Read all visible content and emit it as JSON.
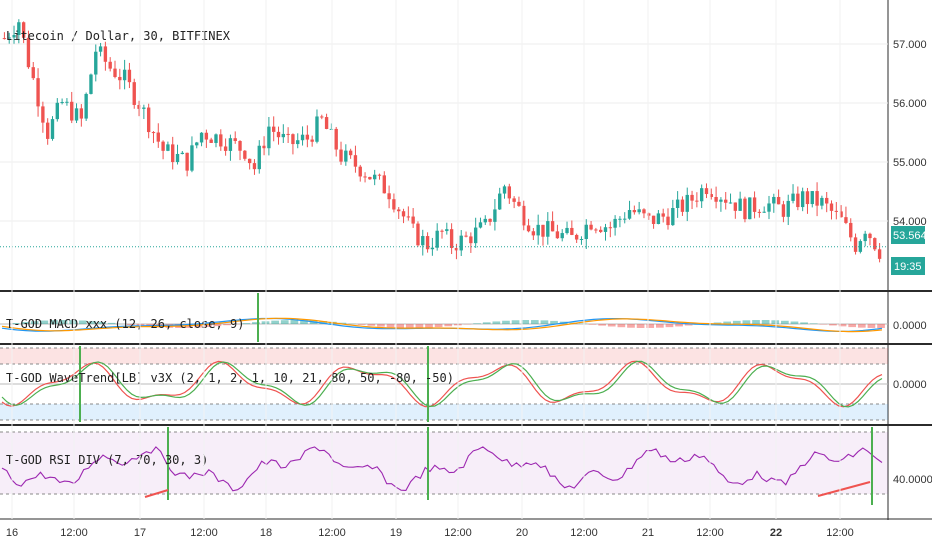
{
  "symbol_title": "Litecoin / Dollar, 30, BITFINEX",
  "colors": {
    "up": "#26a69a",
    "down": "#ef5350",
    "price_line": "#26a69a",
    "macd": "#2196f3",
    "signal": "#ff9800",
    "wt1": "#ef5350",
    "wt2": "#4caf50",
    "rsi": "#9c27b0",
    "marker": "#4caf50",
    "div": "#ef5350"
  },
  "price_panel": {
    "ticks": [
      "57.000",
      "56.000",
      "55.000",
      "54.000"
    ],
    "tick_values": [
      57,
      56,
      55,
      54
    ],
    "last_price": "53.564",
    "last_price_value": 53.564,
    "countdown": "19:35"
  },
  "panes": {
    "macd": {
      "title": "T-GOD MACD xxx (12, 26, close, 9)",
      "tick": "0.0000"
    },
    "wavetrend": {
      "title": "T-GOD WaveTrend[LB] v3X (2, 1, 2, 1, 10, 21, 80, 50, -80, -50)",
      "tick": "0.0000"
    },
    "rsi": {
      "title": "T-GOD RSI DIV (7, 70, 30, 3)",
      "tick": "40.0000"
    }
  },
  "time_axis": [
    "16",
    "12:00",
    "17",
    "12:00",
    "18",
    "12:00",
    "19",
    "12:00",
    "20",
    "12:00",
    "21",
    "12:00",
    "22",
    "12:00"
  ],
  "chart_data": {
    "type": "candlestick",
    "title": "Litecoin / Dollar, 30, BITFINEX",
    "price_keypoints": [
      [
        0,
        57.1
      ],
      [
        3,
        57.4
      ],
      [
        5,
        56.7
      ],
      [
        9,
        55.5
      ],
      [
        12,
        56.0
      ],
      [
        16,
        55.7
      ],
      [
        19,
        56.9
      ],
      [
        22,
        56.6
      ],
      [
        25,
        56.4
      ],
      [
        28,
        56.0
      ],
      [
        33,
        55.2
      ],
      [
        38,
        55.0
      ],
      [
        41,
        55.5
      ],
      [
        45,
        55.4
      ],
      [
        50,
        55.2
      ],
      [
        52,
        54.9
      ],
      [
        55,
        55.6
      ],
      [
        59,
        55.3
      ],
      [
        63,
        55.4
      ],
      [
        66,
        55.7
      ],
      [
        70,
        55.1
      ],
      [
        74,
        54.9
      ],
      [
        80,
        54.5
      ],
      [
        85,
        53.8
      ],
      [
        88,
        53.6
      ],
      [
        91,
        53.8
      ],
      [
        93,
        53.6
      ],
      [
        96,
        53.7
      ],
      [
        100,
        53.9
      ],
      [
        104,
        54.6
      ],
      [
        106,
        54.3
      ],
      [
        110,
        53.9
      ],
      [
        114,
        53.8
      ],
      [
        118,
        53.7
      ],
      [
        122,
        54.0
      ],
      [
        126,
        53.9
      ],
      [
        130,
        54.2
      ],
      [
        134,
        54.0
      ],
      [
        138,
        54.1
      ],
      [
        142,
        54.3
      ],
      [
        146,
        54.6
      ],
      [
        150,
        54.4
      ],
      [
        154,
        54.2
      ],
      [
        158,
        54.3
      ],
      [
        162,
        54.2
      ],
      [
        166,
        54.4
      ],
      [
        170,
        54.3
      ],
      [
        174,
        54.0
      ],
      [
        177,
        53.6
      ],
      [
        179,
        53.9
      ],
      [
        182,
        53.5
      ]
    ],
    "wavetrend_bands": {
      "overbought": [
        80,
        50
      ],
      "oversold": [
        -80,
        -50
      ]
    },
    "rsi_levels": {
      "upper": 70,
      "lower": 30
    }
  }
}
